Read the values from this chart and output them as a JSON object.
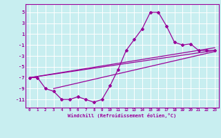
{
  "xlabel": "Windchill (Refroidissement éolien,°C)",
  "background_color": "#c8eef0",
  "grid_color": "#ffffff",
  "line_color": "#990099",
  "xlim": [
    -0.5,
    23.5
  ],
  "ylim": [
    -12.5,
    6.5
  ],
  "xticks": [
    0,
    1,
    2,
    3,
    4,
    5,
    6,
    7,
    8,
    9,
    10,
    11,
    12,
    13,
    14,
    15,
    16,
    17,
    18,
    19,
    20,
    21,
    22,
    23
  ],
  "yticks": [
    -11,
    -9,
    -7,
    -5,
    -3,
    -1,
    1,
    3,
    5
  ],
  "series": [
    [
      0,
      -7
    ],
    [
      1,
      -7
    ],
    [
      2,
      -9
    ],
    [
      3,
      -9.5
    ],
    [
      4,
      -11
    ],
    [
      5,
      -11
    ],
    [
      6,
      -10.5
    ],
    [
      7,
      -11
    ],
    [
      8,
      -11.5
    ],
    [
      9,
      -11
    ],
    [
      10,
      -8.5
    ],
    [
      11,
      -5.5
    ],
    [
      12,
      -2
    ],
    [
      13,
      0
    ],
    [
      14,
      2
    ],
    [
      15,
      5
    ],
    [
      16,
      5
    ],
    [
      17,
      2.5
    ],
    [
      18,
      -0.5
    ],
    [
      19,
      -1
    ],
    [
      20,
      -0.8
    ],
    [
      21,
      -2
    ],
    [
      22,
      -2
    ],
    [
      23,
      -2
    ]
  ],
  "linear_series1": [
    [
      0,
      -7
    ],
    [
      23,
      -2.0
    ]
  ],
  "linear_series2": [
    [
      0,
      -7
    ],
    [
      23,
      -1.5
    ]
  ],
  "linear_series3": [
    [
      3,
      -9
    ],
    [
      23,
      -2.2
    ]
  ]
}
